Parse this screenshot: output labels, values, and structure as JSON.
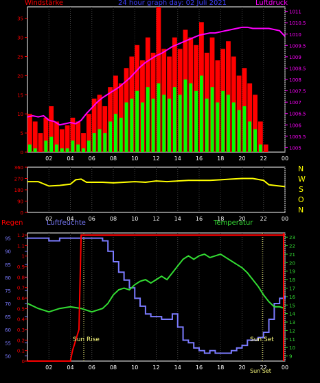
{
  "colors": {
    "background": "#000000",
    "frame": "#ffffff",
    "grid": "#404040",
    "wind": "#ff0000",
    "gust": "#00ff00",
    "pressure": "#ff00ff",
    "direction": "#ffff00",
    "rain": "#ff0000",
    "humidity": "#7b7bff",
    "temperature": "#33dd33",
    "title": "#4040ff",
    "compass": "#ffff00",
    "axis_left_top": "#ff0000",
    "axis_right_top": "#ff00ff",
    "axis_humidity": "#7b7bff",
    "axis_rain": "#ff0000",
    "axis_temp": "#33dd33",
    "sun": "#ffff80"
  },
  "header": {
    "wind_label": "Windstärke",
    "title": "24 hour graph day: 02 Juli 2021",
    "pressure_label": "Luftdruck"
  },
  "bottom_labels": {
    "rain": "Regen",
    "humidity": "Luftfeuchte",
    "temperature": "Temperatur",
    "sunrise": "Sun Rise",
    "sunset": "Sun Set",
    "sunset_axis": "Sun Set"
  },
  "compass": [
    "N",
    "W",
    "S",
    "O",
    "N"
  ],
  "x_ticks": [
    "02",
    "04",
    "06",
    "08",
    "10",
    "12",
    "14",
    "16",
    "18",
    "20",
    "22",
    "00"
  ],
  "chart_data": [
    {
      "type": "line",
      "name": "wind-pressure",
      "x_range_hours": [
        0,
        24
      ],
      "left_axis": {
        "ticks": [
          0,
          5,
          10,
          15,
          20,
          25,
          30,
          35
        ],
        "ylim": [
          0,
          38
        ]
      },
      "right_axis": {
        "ticks": [
          1005,
          1005.5,
          1006,
          1006.5,
          1007,
          1007.5,
          1008,
          1008.5,
          1009,
          1009.5,
          1010,
          1010.5,
          1011
        ],
        "ylim": [
          1004.8,
          1011.2
        ]
      },
      "series": [
        {
          "key": "pressure",
          "axis": "right",
          "x": [
            0,
            0.5,
            1,
            1.5,
            2,
            2.5,
            3,
            3.5,
            4,
            4.5,
            5,
            5.5,
            6,
            6.5,
            7,
            7.5,
            8,
            8.5,
            9,
            9.5,
            10,
            10.5,
            11,
            11.5,
            12,
            12.5,
            13,
            13.5,
            14,
            14.5,
            15,
            15.5,
            16,
            16.5,
            17,
            17.5,
            18,
            18.5,
            19,
            19.5,
            20,
            20.5,
            21,
            21.5,
            22,
            22.5,
            23,
            23.5,
            24
          ],
          "y": [
            1006.35,
            1006.4,
            1006.35,
            1006.4,
            1006.2,
            1006.15,
            1006.0,
            1006.05,
            1006.1,
            1006.05,
            1006.2,
            1006.5,
            1006.75,
            1007.0,
            1007.2,
            1007.35,
            1007.5,
            1007.65,
            1007.85,
            1008.05,
            1008.3,
            1008.55,
            1008.75,
            1008.9,
            1009.05,
            1009.15,
            1009.3,
            1009.45,
            1009.55,
            1009.65,
            1009.75,
            1009.85,
            1009.95,
            1010.0,
            1010.05,
            1010.05,
            1010.1,
            1010.15,
            1010.2,
            1010.25,
            1010.3,
            1010.3,
            1010.25,
            1010.25,
            1010.25,
            1010.25,
            1010.2,
            1010.15,
            1009.9
          ]
        },
        {
          "key": "wind",
          "axis": "left",
          "render": "bars",
          "x": [
            0,
            0.5,
            1,
            1.5,
            2,
            2.5,
            3,
            3.5,
            4,
            4.5,
            5,
            5.5,
            6,
            6.5,
            7,
            7.5,
            8,
            8.5,
            9,
            9.5,
            10,
            10.5,
            11,
            11.5,
            12,
            12.5,
            13,
            13.5,
            14,
            14.5,
            15,
            15.5,
            16,
            16.5,
            17,
            17.5,
            18,
            18.5,
            19,
            19.5,
            20,
            20.5,
            21,
            21.5,
            22,
            22.5,
            23,
            23.5
          ],
          "y": [
            10,
            8,
            5,
            9,
            12,
            8,
            6,
            7,
            9,
            8,
            5,
            10,
            14,
            15,
            12,
            17,
            20,
            18,
            22,
            25,
            28,
            24,
            30,
            26,
            38,
            27,
            25,
            30,
            27,
            32,
            30,
            28,
            34,
            26,
            30,
            24,
            27,
            29,
            25,
            20,
            22,
            18,
            15,
            8,
            2,
            0,
            0,
            0
          ]
        },
        {
          "key": "gust",
          "axis": "left",
          "render": "bars",
          "x": [
            0,
            0.5,
            1,
            1.5,
            2,
            2.5,
            3,
            3.5,
            4,
            4.5,
            5,
            5.5,
            6,
            6.5,
            7,
            7.5,
            8,
            8.5,
            9,
            9.5,
            10,
            10.5,
            11,
            11.5,
            12,
            12.5,
            13,
            13.5,
            14,
            14.5,
            15,
            15.5,
            16,
            16.5,
            17,
            17.5,
            18,
            18.5,
            19,
            19.5,
            20,
            20.5,
            21,
            21.5,
            22,
            22.5,
            23,
            23.5
          ],
          "y": [
            2,
            1,
            0,
            3,
            4,
            2,
            1,
            1,
            3,
            2,
            1,
            3,
            5,
            6,
            5,
            8,
            10,
            9,
            13,
            14,
            16,
            13,
            17,
            14,
            18,
            15,
            14,
            17,
            15,
            19,
            18,
            16,
            20,
            14,
            17,
            13,
            16,
            15,
            13,
            11,
            12,
            8,
            6,
            2,
            0,
            0,
            0,
            0
          ]
        }
      ]
    },
    {
      "type": "line",
      "name": "wind-direction",
      "x_range_hours": [
        0,
        24
      ],
      "left_axis": {
        "ticks": [
          0,
          90,
          180,
          270,
          360
        ],
        "ylim": [
          0,
          360
        ]
      },
      "series": [
        {
          "key": "direction",
          "x": [
            0,
            1,
            2,
            3,
            4,
            4.5,
            5,
            5.5,
            6,
            7,
            8,
            9,
            10,
            11,
            12,
            13,
            14,
            15,
            16,
            17,
            18,
            19,
            20,
            21,
            22,
            22.5,
            23,
            24
          ],
          "y": [
            245,
            245,
            210,
            215,
            225,
            260,
            265,
            240,
            240,
            240,
            235,
            240,
            245,
            240,
            250,
            245,
            250,
            255,
            255,
            255,
            260,
            265,
            270,
            270,
            255,
            220,
            215,
            205
          ]
        }
      ]
    },
    {
      "type": "line",
      "name": "humidity-rain-temperature",
      "x_range_hours": [
        0,
        24
      ],
      "humidity_axis": {
        "ticks": [
          50,
          55,
          60,
          65,
          70,
          75,
          80,
          85,
          90,
          95
        ],
        "ylim": [
          48,
          97
        ]
      },
      "rain_axis": {
        "ticks": [
          0,
          0.1,
          0.2,
          0.3,
          0.4,
          0.5,
          0.6,
          0.7,
          0.8,
          0.9,
          1,
          1.1,
          1.2
        ],
        "ylim": [
          0,
          1.22
        ]
      },
      "temp_axis": {
        "ticks": [
          9,
          10,
          11,
          12,
          13,
          14,
          15,
          16,
          17,
          18,
          19,
          20,
          21,
          22,
          23
        ],
        "ylim": [
          8.4,
          23.5
        ]
      },
      "sunrise_hour": 5.25,
      "sunset_hour": 21.9,
      "series": [
        {
          "key": "humidity",
          "x": [
            0,
            1,
            2,
            3,
            4,
            5,
            6,
            6.5,
            7,
            7.5,
            8,
            8.5,
            9,
            9.5,
            10,
            10.5,
            11,
            11.5,
            12,
            12.5,
            13,
            13.5,
            14,
            14.5,
            15,
            15.5,
            16,
            16.5,
            17,
            17.5,
            18,
            18.5,
            19,
            19.5,
            20,
            20.5,
            21,
            21.5,
            22,
            22.5,
            23,
            23.5,
            24
          ],
          "y": [
            95,
            95,
            94,
            95,
            95,
            95,
            95,
            95,
            94,
            90,
            86,
            82,
            79,
            76,
            72,
            69,
            66,
            65,
            65,
            64,
            64,
            66,
            61,
            56,
            55,
            53,
            52,
            51,
            52,
            51,
            51,
            51,
            52,
            53,
            54,
            56,
            56,
            57,
            59,
            64,
            70,
            72,
            73
          ]
        },
        {
          "key": "rain",
          "x": [
            0,
            4,
            4.2,
            4.8,
            5,
            24
          ],
          "y": [
            0,
            0,
            0.1,
            0.3,
            1.2,
            1.2
          ]
        },
        {
          "key": "temperature",
          "x": [
            0,
            1,
            2,
            3,
            4,
            5,
            6,
            7,
            7.5,
            8,
            8.5,
            9,
            9.5,
            10,
            10.5,
            11,
            11.5,
            12,
            12.5,
            13,
            13.5,
            14,
            14.5,
            15,
            15.5,
            16,
            16.5,
            17,
            17.5,
            18,
            18.5,
            19,
            19.5,
            20,
            20.5,
            21,
            21.5,
            22,
            22.5,
            23,
            23.5,
            24
          ],
          "y": [
            15.2,
            14.6,
            14.2,
            14.6,
            14.8,
            14.6,
            14.2,
            14.6,
            15.2,
            16.2,
            16.8,
            17.0,
            16.8,
            17.4,
            17.8,
            18.0,
            17.6,
            18.0,
            18.4,
            18.0,
            18.8,
            19.6,
            20.4,
            20.8,
            20.4,
            20.8,
            21.0,
            20.6,
            20.8,
            21.0,
            20.6,
            20.2,
            19.8,
            19.4,
            18.8,
            18.0,
            17.2,
            16.2,
            15.4,
            14.8,
            14.8,
            14.6
          ]
        }
      ]
    }
  ]
}
